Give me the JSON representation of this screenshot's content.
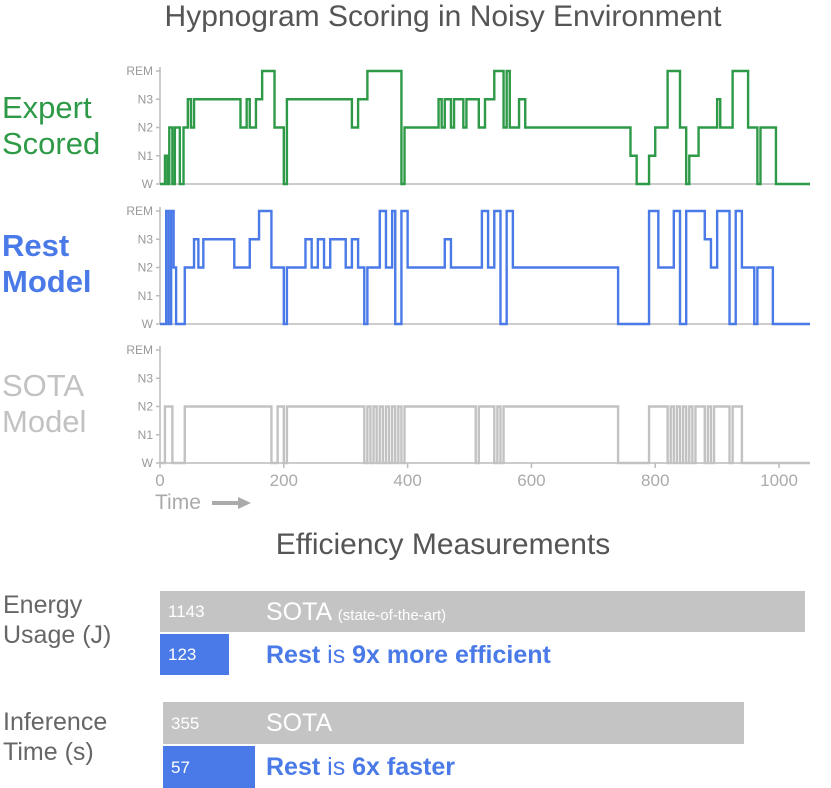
{
  "titles": {
    "hypnogram": "Hypnogram Scoring in Noisy Environment",
    "efficiency": "Efficiency Measurements"
  },
  "row_labels": {
    "expert": [
      "Expert",
      "Scored"
    ],
    "rest": [
      "Rest",
      "Model"
    ],
    "sota": [
      "SOTA",
      "Model"
    ]
  },
  "colors": {
    "expert": "#2e9a48",
    "rest": "#4a7ae8",
    "sota": "#c2c2c2",
    "axis": "#bbbbbb",
    "sota_bar": "#c4c4c4",
    "rest_bar": "#4a7ae8"
  },
  "chart_data": [
    {
      "type": "line",
      "title": "Hypnogram Scoring in Noisy Environment",
      "xlabel": "Time",
      "xlim": [
        0,
        1050
      ],
      "x_ticks": [
        "0",
        "200",
        "400",
        "600",
        "800",
        "1000"
      ],
      "y_categories": [
        "W",
        "N1",
        "N2",
        "N3",
        "REM"
      ],
      "series": [
        {
          "name": "Expert Scored",
          "color": "#2e9a48",
          "steps": [
            [
              0,
              0
            ],
            [
              8,
              1
            ],
            [
              12,
              0
            ],
            [
              15,
              2
            ],
            [
              20,
              0
            ],
            [
              24,
              2
            ],
            [
              32,
              0
            ],
            [
              38,
              2
            ],
            [
              45,
              3
            ],
            [
              50,
              2
            ],
            [
              55,
              3
            ],
            [
              130,
              2
            ],
            [
              140,
              3
            ],
            [
              145,
              2
            ],
            [
              155,
              3
            ],
            [
              165,
              4
            ],
            [
              185,
              2
            ],
            [
              200,
              0
            ],
            [
              205,
              3
            ],
            [
              310,
              2
            ],
            [
              320,
              3
            ],
            [
              335,
              4
            ],
            [
              390,
              0
            ],
            [
              395,
              2
            ],
            [
              450,
              3
            ],
            [
              455,
              2
            ],
            [
              460,
              3
            ],
            [
              470,
              2
            ],
            [
              475,
              3
            ],
            [
              490,
              2
            ],
            [
              495,
              3
            ],
            [
              515,
              2
            ],
            [
              525,
              3
            ],
            [
              540,
              4
            ],
            [
              555,
              2
            ],
            [
              560,
              4
            ],
            [
              565,
              2
            ],
            [
              580,
              3
            ],
            [
              590,
              2
            ],
            [
              760,
              1
            ],
            [
              770,
              0
            ],
            [
              790,
              1
            ],
            [
              800,
              2
            ],
            [
              820,
              4
            ],
            [
              840,
              2
            ],
            [
              850,
              0
            ],
            [
              855,
              1
            ],
            [
              870,
              2
            ],
            [
              900,
              3
            ],
            [
              905,
              2
            ],
            [
              925,
              4
            ],
            [
              950,
              2
            ],
            [
              965,
              0
            ],
            [
              970,
              2
            ],
            [
              995,
              0
            ],
            [
              1050,
              0
            ]
          ]
        },
        {
          "name": "Rest Model",
          "color": "#4a7ae8",
          "steps": [
            [
              0,
              0
            ],
            [
              10,
              4
            ],
            [
              14,
              0
            ],
            [
              18,
              4
            ],
            [
              22,
              2
            ],
            [
              26,
              0
            ],
            [
              40,
              2
            ],
            [
              55,
              3
            ],
            [
              62,
              2
            ],
            [
              70,
              3
            ],
            [
              120,
              2
            ],
            [
              145,
              3
            ],
            [
              160,
              4
            ],
            [
              180,
              2
            ],
            [
              200,
              0
            ],
            [
              205,
              2
            ],
            [
              235,
              3
            ],
            [
              245,
              2
            ],
            [
              255,
              3
            ],
            [
              265,
              2
            ],
            [
              275,
              3
            ],
            [
              300,
              2
            ],
            [
              310,
              3
            ],
            [
              320,
              2
            ],
            [
              330,
              0
            ],
            [
              335,
              2
            ],
            [
              355,
              4
            ],
            [
              365,
              2
            ],
            [
              375,
              4
            ],
            [
              380,
              0
            ],
            [
              390,
              4
            ],
            [
              400,
              2
            ],
            [
              415,
              2
            ],
            [
              460,
              3
            ],
            [
              470,
              2
            ],
            [
              520,
              4
            ],
            [
              530,
              2
            ],
            [
              540,
              4
            ],
            [
              550,
              0
            ],
            [
              560,
              4
            ],
            [
              570,
              2
            ],
            [
              740,
              0
            ],
            [
              790,
              4
            ],
            [
              805,
              2
            ],
            [
              830,
              4
            ],
            [
              840,
              0
            ],
            [
              850,
              4
            ],
            [
              880,
              3
            ],
            [
              890,
              2
            ],
            [
              900,
              4
            ],
            [
              920,
              0
            ],
            [
              930,
              4
            ],
            [
              940,
              2
            ],
            [
              960,
              0
            ],
            [
              965,
              2
            ],
            [
              990,
              0
            ],
            [
              1050,
              0
            ]
          ]
        },
        {
          "name": "SOTA Model",
          "color": "#c2c2c2",
          "steps": [
            [
              0,
              0
            ],
            [
              8,
              2
            ],
            [
              20,
              0
            ],
            [
              40,
              2
            ],
            [
              180,
              0
            ],
            [
              190,
              2
            ],
            [
              200,
              0
            ],
            [
              205,
              2
            ],
            [
              330,
              0
            ],
            [
              335,
              2
            ],
            [
              340,
              0
            ],
            [
              345,
              2
            ],
            [
              350,
              0
            ],
            [
              355,
              2
            ],
            [
              360,
              0
            ],
            [
              365,
              2
            ],
            [
              370,
              0
            ],
            [
              375,
              2
            ],
            [
              380,
              0
            ],
            [
              385,
              2
            ],
            [
              390,
              0
            ],
            [
              395,
              2
            ],
            [
              510,
              0
            ],
            [
              515,
              2
            ],
            [
              540,
              0
            ],
            [
              545,
              2
            ],
            [
              550,
              0
            ],
            [
              555,
              2
            ],
            [
              740,
              0
            ],
            [
              790,
              2
            ],
            [
              820,
              0
            ],
            [
              825,
              2
            ],
            [
              830,
              0
            ],
            [
              835,
              2
            ],
            [
              840,
              0
            ],
            [
              845,
              2
            ],
            [
              850,
              0
            ],
            [
              855,
              2
            ],
            [
              860,
              0
            ],
            [
              865,
              2
            ],
            [
              880,
              0
            ],
            [
              885,
              2
            ],
            [
              890,
              0
            ],
            [
              895,
              2
            ],
            [
              920,
              0
            ],
            [
              925,
              2
            ],
            [
              940,
              0
            ],
            [
              1050,
              0
            ]
          ]
        }
      ]
    },
    {
      "type": "bar",
      "title": "Efficiency Measurements",
      "categories": [
        "Energy Usage (J)",
        "Inference Time (s)"
      ],
      "series": [
        {
          "name": "SOTA",
          "values": [
            1143,
            355
          ]
        },
        {
          "name": "Rest",
          "values": [
            123,
            57
          ]
        }
      ]
    }
  ],
  "efficiency": {
    "energy": {
      "label": [
        "Energy",
        "Usage (J)"
      ],
      "sota_value": "1143",
      "sota_text": "SOTA",
      "sota_paren": "(state-of-the-art)",
      "rest_value": "123",
      "rest_bold": "Rest",
      "rest_plain": "is",
      "rest_claim": "9x more efficient"
    },
    "inference": {
      "label": [
        "Inference",
        "Time (s)"
      ],
      "sota_value": "355",
      "sota_text": "SOTA",
      "rest_value": "57",
      "rest_bold": "Rest",
      "rest_plain": "is",
      "rest_claim": "6x faster"
    }
  }
}
